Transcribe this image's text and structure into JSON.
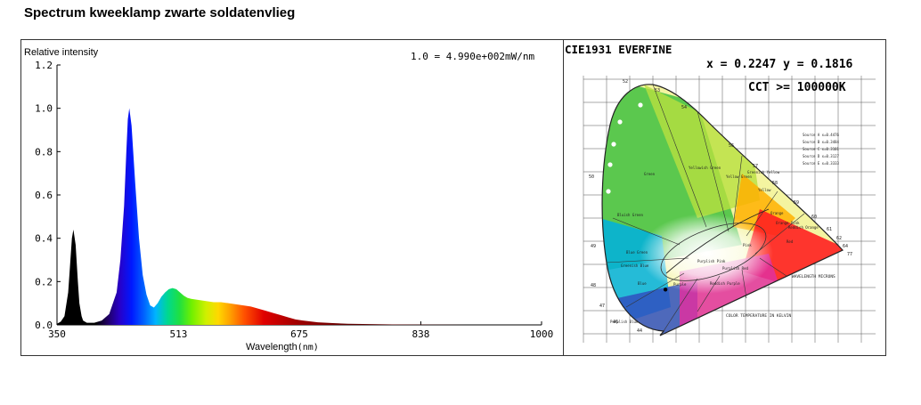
{
  "page": {
    "title": "Spectrum kweeklamp zwarte soldatenvlieg"
  },
  "chart_data": [
    {
      "type": "line",
      "ylabel": "Relative intensity",
      "xlabel": "Wavelength",
      "xlabel_unit": "(nm)",
      "scale_note": "1.0 = 4.990e+002mW/nm",
      "xlim": [
        350,
        1000
      ],
      "ylim": [
        0,
        1.2
      ],
      "x_ticks": [
        "350",
        "513",
        "675",
        "838",
        "1000"
      ],
      "y_ticks": [
        "0.0",
        "0.2",
        "0.4",
        "0.6",
        "0.8",
        "1.0",
        "1.2"
      ],
      "series": [
        {
          "x": [
            350,
            355,
            360,
            365,
            368,
            370,
            372,
            375,
            378,
            380,
            383,
            385,
            390,
            400,
            410,
            420,
            430,
            435,
            440,
            443,
            445,
            447,
            450,
            455,
            460,
            465,
            470,
            475,
            480,
            485,
            490,
            495,
            500,
            505,
            510,
            515,
            520,
            525,
            530,
            540,
            550,
            560,
            570,
            580,
            590,
            600,
            610,
            620,
            630,
            640,
            650,
            660,
            670,
            680,
            700,
            720,
            740,
            760,
            780,
            800,
            850,
            900,
            950,
            1000
          ],
          "y": [
            0.005,
            0.015,
            0.04,
            0.15,
            0.3,
            0.4,
            0.44,
            0.37,
            0.2,
            0.1,
            0.04,
            0.02,
            0.01,
            0.01,
            0.02,
            0.05,
            0.15,
            0.3,
            0.55,
            0.8,
            0.95,
            1.0,
            0.92,
            0.65,
            0.4,
            0.23,
            0.14,
            0.09,
            0.08,
            0.1,
            0.13,
            0.15,
            0.165,
            0.17,
            0.165,
            0.15,
            0.135,
            0.125,
            0.12,
            0.115,
            0.11,
            0.105,
            0.105,
            0.1,
            0.095,
            0.09,
            0.085,
            0.075,
            0.065,
            0.055,
            0.045,
            0.035,
            0.025,
            0.02,
            0.012,
            0.008,
            0.005,
            0.004,
            0.003,
            0.002,
            0.001,
            0.0,
            0.0,
            0.0
          ]
        }
      ]
    },
    {
      "type": "scatter",
      "title": "CIE1931  EVERFINE",
      "coords_label": "x = 0.2247 y = 0.1816",
      "cct_label": "CCT >= 100000K",
      "xlim": [
        0,
        0.8
      ],
      "ylim": [
        0,
        0.9
      ],
      "point": {
        "x": 0.2247,
        "y": 0.1816
      },
      "locus_labels": [
        "52",
        "53",
        "54",
        "56",
        "57",
        "58",
        "59",
        "60",
        "61",
        "62",
        "64",
        "77",
        "50",
        "49",
        "48",
        "47",
        "46",
        "44"
      ],
      "region_labels": [
        "Green",
        "Yellowish Green",
        "Yellow Green",
        "Greenish Yellow",
        "Yellow",
        "Orange",
        "Bluish Green",
        "Blue Green",
        "Greenish Blue",
        "Blue",
        "Purplish Blue",
        "Purple",
        "Reddish Purple",
        "Purplish Red",
        "Pink",
        "Red",
        "Orange Pink",
        "Reddish Orange",
        "Purplish Pink"
      ],
      "footer_label": "COLOR TEMPERATURE IN KELVIN",
      "wavelength_label": "WAVELENGTH MICRONS",
      "source_legend": [
        "Source A x=0.4476",
        "Source B x=0.3484",
        "Source C x=0.3101",
        "Source D x=0.3127",
        "Source E x=0.3333"
      ]
    }
  ]
}
